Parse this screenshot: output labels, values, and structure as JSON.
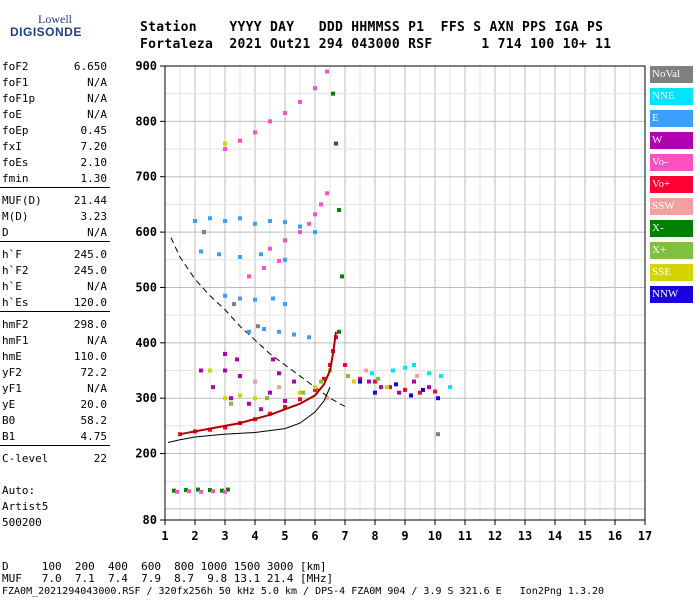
{
  "logo": {
    "line1": "Lowell",
    "line2": "DIGISONDE"
  },
  "header": {
    "line1": "Station    YYYY DAY   DDD HHMMSS P1  FFS S AXN PPS IGA PS",
    "line2": "Fortaleza  2021 Out21 294 043000 RSF      1 714 100 10+ 11"
  },
  "params": [
    {
      "label": "foF2",
      "value": "6.650"
    },
    {
      "label": "foF1",
      "value": "N/A"
    },
    {
      "label": "foF1p",
      "value": "N/A"
    },
    {
      "label": "foE",
      "value": "N/A"
    },
    {
      "label": "foEp",
      "value": "0.45"
    },
    {
      "label": "fxI",
      "value": "7.20"
    },
    {
      "label": "foEs",
      "value": "2.10"
    },
    {
      "label": "fmin",
      "value": "1.30"
    },
    {
      "label": "MUF(D)",
      "value": "21.44"
    },
    {
      "label": "M(D)",
      "value": "3.23"
    },
    {
      "label": "D",
      "value": "N/A"
    },
    {
      "label": "h`F",
      "value": "245.0"
    },
    {
      "label": "h`F2",
      "value": "245.0"
    },
    {
      "label": "h`E",
      "value": "N/A"
    },
    {
      "label": "h`Es",
      "value": "120.0"
    },
    {
      "label": "hmF2",
      "value": "298.0"
    },
    {
      "label": "hmF1",
      "value": "N/A"
    },
    {
      "label": "hmE",
      "value": "110.0"
    },
    {
      "label": "yF2",
      "value": "72.2"
    },
    {
      "label": "yF1",
      "value": "N/A"
    },
    {
      "label": "yE",
      "value": "20.0"
    },
    {
      "label": "B0",
      "value": "58.2"
    },
    {
      "label": "B1",
      "value": "4.75"
    },
    {
      "label": "C-level",
      "value": "22"
    }
  ],
  "auto": {
    "line1": "Auto:",
    "line2": "Artist5",
    "line3": "500200"
  },
  "legend": [
    {
      "label": "NoVal",
      "color": "#808080"
    },
    {
      "label": "NNE",
      "color": "#00e5ff"
    },
    {
      "label": "E",
      "color": "#3aa0ff"
    },
    {
      "label": "W",
      "color": "#b000b0"
    },
    {
      "label": "Vo-",
      "color": "#ff4fc0"
    },
    {
      "label": "Vo+",
      "color": "#ff0030"
    },
    {
      "label": "SSW",
      "color": "#f5a0a0"
    },
    {
      "label": "X-",
      "color": "#008000"
    },
    {
      "label": "X+",
      "color": "#80c040"
    },
    {
      "label": "SSE",
      "color": "#d4d400"
    },
    {
      "label": "NNW",
      "color": "#1a00e0"
    }
  ],
  "footer": {
    "line1": "D     100  200  400  600  800 1000 1500 3000 [km]",
    "line2": "MUF   7.0  7.1  7.4  7.9  8.7  9.8 13.1 21.4 [MHz]",
    "line3": "FZA0M_2021294043000.RSF / 320fx256h 50 kHz 5.0 km / DPS-4 FZA0M 904 / 3.9 S 321.6 E   Ion2Png 1.3.20"
  },
  "chart_data": {
    "type": "scatter",
    "title": "",
    "xlabel": "",
    "ylabel": "",
    "xlim": [
      1,
      17
    ],
    "ylim": [
      80,
      900
    ],
    "x_ticks": [
      1,
      2,
      3,
      4,
      5,
      6,
      7,
      8,
      9,
      10,
      11,
      12,
      13,
      14,
      15,
      16,
      17
    ],
    "y_ticks": [
      80,
      200,
      300,
      400,
      500,
      600,
      700,
      800,
      900
    ],
    "grid": true,
    "series": [
      {
        "name": "Vo+",
        "color": "#ff0030",
        "points": [
          [
            1.5,
            235
          ],
          [
            2.0,
            240
          ],
          [
            2.5,
            243
          ],
          [
            3.0,
            247
          ],
          [
            3.5,
            255
          ],
          [
            4.0,
            262
          ],
          [
            4.5,
            272
          ],
          [
            5.0,
            284
          ],
          [
            5.5,
            298
          ],
          [
            6.0,
            315
          ],
          [
            6.3,
            335
          ],
          [
            6.5,
            360
          ],
          [
            6.6,
            385
          ],
          [
            6.7,
            410
          ],
          [
            7.0,
            360
          ],
          [
            7.5,
            335
          ],
          [
            8.0,
            330
          ],
          [
            8.5,
            320
          ],
          [
            9.0,
            315
          ],
          [
            9.5,
            310
          ],
          [
            10.0,
            312
          ]
        ]
      },
      {
        "name": "W",
        "color": "#b000b0",
        "points": [
          [
            2.6,
            320
          ],
          [
            3.0,
            350
          ],
          [
            3.2,
            300
          ],
          [
            3.5,
            340
          ],
          [
            3.8,
            290
          ],
          [
            4.0,
            330
          ],
          [
            4.2,
            280
          ],
          [
            4.5,
            310
          ],
          [
            4.8,
            345
          ],
          [
            5.0,
            295
          ],
          [
            3.0,
            380
          ],
          [
            3.4,
            370
          ],
          [
            2.2,
            350
          ],
          [
            4.6,
            370
          ],
          [
            5.3,
            330
          ],
          [
            7.8,
            330
          ],
          [
            8.2,
            320
          ],
          [
            8.8,
            310
          ],
          [
            9.3,
            330
          ],
          [
            9.8,
            320
          ]
        ]
      },
      {
        "name": "NNE",
        "color": "#00e5ff",
        "points": [
          [
            9.0,
            355
          ],
          [
            9.3,
            360
          ],
          [
            9.8,
            345
          ],
          [
            10.2,
            340
          ],
          [
            8.6,
            350
          ],
          [
            7.9,
            345
          ],
          [
            10.5,
            320
          ]
        ]
      },
      {
        "name": "E",
        "color": "#3aa0ff",
        "points": [
          [
            2.0,
            620
          ],
          [
            2.5,
            625
          ],
          [
            3.0,
            620
          ],
          [
            3.5,
            625
          ],
          [
            4.0,
            615
          ],
          [
            4.5,
            620
          ],
          [
            5.0,
            618
          ],
          [
            5.5,
            610
          ],
          [
            6.0,
            600
          ],
          [
            2.2,
            565
          ],
          [
            2.8,
            560
          ],
          [
            3.5,
            555
          ],
          [
            4.2,
            560
          ],
          [
            5.0,
            550
          ],
          [
            3.0,
            485
          ],
          [
            3.5,
            480
          ],
          [
            4.0,
            478
          ],
          [
            4.6,
            480
          ],
          [
            5.0,
            470
          ],
          [
            3.8,
            420
          ],
          [
            4.3,
            425
          ],
          [
            4.8,
            420
          ],
          [
            5.3,
            415
          ],
          [
            5.8,
            410
          ]
        ]
      },
      {
        "name": "X-",
        "color": "#008000",
        "points": [
          [
            1.3,
            133
          ],
          [
            1.7,
            134
          ],
          [
            2.1,
            135
          ],
          [
            2.5,
            134
          ],
          [
            2.9,
            133
          ],
          [
            3.1,
            135
          ],
          [
            6.8,
            420
          ],
          [
            6.9,
            520
          ],
          [
            6.8,
            640
          ],
          [
            6.7,
            760
          ],
          [
            6.6,
            850
          ]
        ]
      },
      {
        "name": "Vo-",
        "color": "#ff4fc0",
        "points": [
          [
            1.4,
            131
          ],
          [
            1.8,
            132
          ],
          [
            2.2,
            131
          ],
          [
            2.6,
            132
          ],
          [
            3.0,
            131
          ],
          [
            4.5,
            570
          ],
          [
            5.0,
            585
          ],
          [
            5.5,
            600
          ],
          [
            5.8,
            615
          ],
          [
            6.0,
            632
          ],
          [
            6.2,
            650
          ],
          [
            6.4,
            670
          ],
          [
            3.0,
            750
          ],
          [
            3.5,
            765
          ],
          [
            4.0,
            780
          ],
          [
            4.5,
            800
          ],
          [
            5.0,
            815
          ],
          [
            5.5,
            835
          ],
          [
            6.0,
            860
          ],
          [
            6.4,
            890
          ],
          [
            3.8,
            520
          ],
          [
            4.3,
            535
          ],
          [
            4.8,
            548
          ]
        ]
      },
      {
        "name": "SSE",
        "color": "#d4d400",
        "points": [
          [
            3.0,
            300
          ],
          [
            3.5,
            305
          ],
          [
            4.0,
            300
          ],
          [
            5.5,
            310
          ],
          [
            6.0,
            320
          ],
          [
            2.5,
            350
          ],
          [
            3.0,
            760
          ],
          [
            7.3,
            330
          ],
          [
            8.4,
            320
          ]
        ]
      },
      {
        "name": "X+",
        "color": "#80c040",
        "points": [
          [
            3.2,
            290
          ],
          [
            4.4,
            300
          ],
          [
            5.6,
            310
          ],
          [
            6.2,
            330
          ],
          [
            6.5,
            350
          ],
          [
            7.1,
            340
          ],
          [
            8.1,
            335
          ]
        ]
      },
      {
        "name": "NNW",
        "color": "#1a00e0",
        "points": [
          [
            7.5,
            330
          ],
          [
            8.0,
            310
          ],
          [
            8.7,
            325
          ],
          [
            9.2,
            305
          ],
          [
            9.6,
            315
          ],
          [
            10.1,
            300
          ]
        ]
      },
      {
        "name": "SSW",
        "color": "#f5a0a0",
        "points": [
          [
            4.0,
            330
          ],
          [
            4.8,
            320
          ],
          [
            6.4,
            300
          ],
          [
            7.7,
            350
          ],
          [
            9.4,
            340
          ]
        ]
      },
      {
        "name": "NoVal",
        "color": "#808080",
        "points": [
          [
            2.3,
            600
          ],
          [
            3.3,
            470
          ],
          [
            4.1,
            430
          ],
          [
            10.1,
            235
          ]
        ]
      }
    ],
    "profile_line": [
      [
        1.1,
        220
      ],
      [
        1.5,
        225
      ],
      [
        2.0,
        230
      ],
      [
        3.0,
        235
      ],
      [
        4.0,
        238
      ],
      [
        5.0,
        245
      ],
      [
        5.5,
        255
      ],
      [
        6.0,
        275
      ],
      [
        6.3,
        295
      ],
      [
        6.5,
        320
      ]
    ],
    "trace_line": [
      [
        1.5,
        235
      ],
      [
        2.5,
        245
      ],
      [
        3.5,
        255
      ],
      [
        4.5,
        270
      ],
      [
        5.5,
        290
      ],
      [
        6.0,
        305
      ],
      [
        6.3,
        325
      ],
      [
        6.5,
        350
      ],
      [
        6.6,
        380
      ],
      [
        6.7,
        420
      ]
    ],
    "muf_curve": [
      [
        1.2,
        590
      ],
      [
        1.5,
        555
      ],
      [
        2.0,
        515
      ],
      [
        2.5,
        485
      ],
      [
        3.0,
        460
      ],
      [
        3.5,
        430
      ],
      [
        4.0,
        405
      ],
      [
        4.5,
        380
      ],
      [
        5.0,
        360
      ],
      [
        5.5,
        340
      ],
      [
        6.0,
        320
      ],
      [
        6.5,
        300
      ],
      [
        7.0,
        285
      ]
    ]
  }
}
